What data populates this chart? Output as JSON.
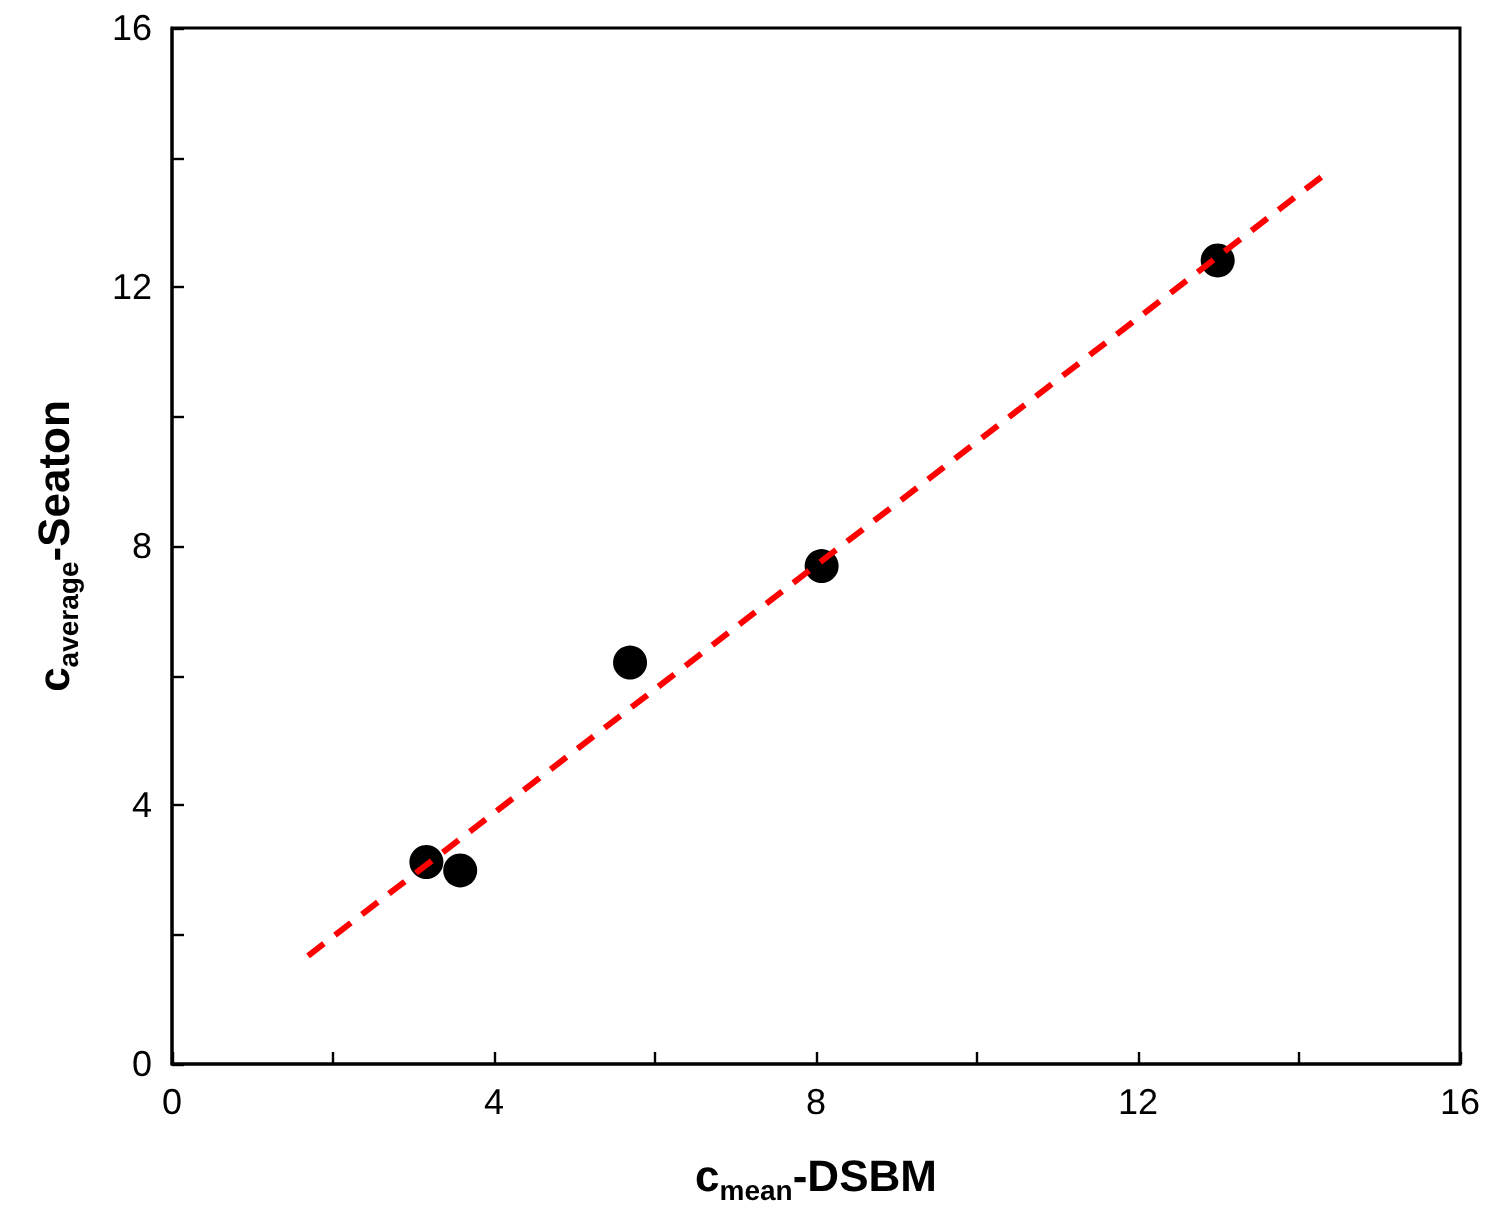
{
  "chart_data": {
    "type": "scatter",
    "xlabel": "c$_{mean}$-DSBM",
    "ylabel": "c$_{average}$-Seaton",
    "x": [
      3.16,
      3.58,
      5.69,
      8.07,
      12.99
    ],
    "series": [
      {
        "color": "#000000",
        "marker": "circle",
        "values": [
          3.12,
          2.99,
          6.2,
          7.69,
          12.41
        ]
      },
      {
        "type": "line",
        "color": "#ff0000",
        "line_style": "dashed",
        "marker": "none",
        "x": [
          1.69,
          14.31
        ],
        "values": [
          1.67,
          13.73
        ]
      }
    ],
    "xlim": [
      0,
      16
    ],
    "ylim": [
      0,
      16
    ],
    "xticks": [
      0,
      {
        "value": 2,
        "label": null
      },
      4,
      {
        "value": 6,
        "label": null
      },
      8,
      {
        "value": 10,
        "label": null
      },
      12,
      {
        "value": 14,
        "label": null
      },
      16
    ],
    "yticks": [
      0,
      {
        "value": 2,
        "label": null
      },
      4,
      {
        "value": 6,
        "label": null
      },
      8,
      {
        "value": 10,
        "label": null
      },
      12,
      {
        "value": 14,
        "label": null
      },
      16
    ],
    "grid": false
  }
}
